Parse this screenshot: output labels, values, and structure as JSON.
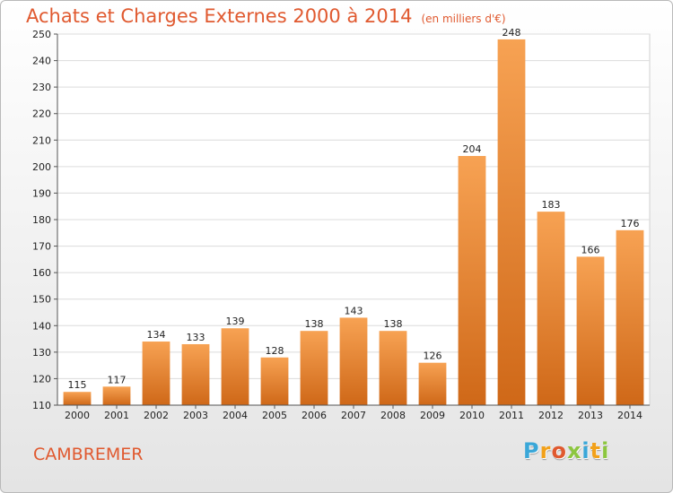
{
  "header": {
    "title": "Achats et Charges Externes 2000 à 2014",
    "unit": "(en milliers d'€)"
  },
  "footer": {
    "city": "CAMBREMER"
  },
  "logo": {
    "letters": [
      {
        "ch": "P",
        "color": "#3aa7d8"
      },
      {
        "ch": "r",
        "color": "#f2a11a"
      },
      {
        "ch": "o",
        "color": "#e0592f"
      },
      {
        "ch": "x",
        "color": "#8cc63f"
      },
      {
        "ch": "i",
        "color": "#3aa7d8"
      },
      {
        "ch": "t",
        "color": "#f2a11a"
      },
      {
        "ch": "i",
        "color": "#8cc63f"
      }
    ]
  },
  "colors": {
    "bar_top": "#f7a253",
    "bar_bottom": "#cf6818",
    "accent": "#e0592f"
  },
  "chart_data": {
    "type": "bar",
    "title": "Achats et Charges Externes 2000 à 2014",
    "categories": [
      "2000",
      "2001",
      "2002",
      "2003",
      "2004",
      "2005",
      "2006",
      "2007",
      "2008",
      "2009",
      "2010",
      "2011",
      "2012",
      "2013",
      "2014"
    ],
    "values": [
      115,
      117,
      134,
      133,
      139,
      128,
      138,
      143,
      138,
      126,
      204,
      248,
      183,
      166,
      176
    ],
    "ylim": [
      110,
      250
    ],
    "yticks": [
      110,
      120,
      130,
      140,
      150,
      160,
      170,
      180,
      190,
      200,
      210,
      220,
      230,
      240,
      250
    ],
    "grid": true,
    "legend": "none"
  }
}
